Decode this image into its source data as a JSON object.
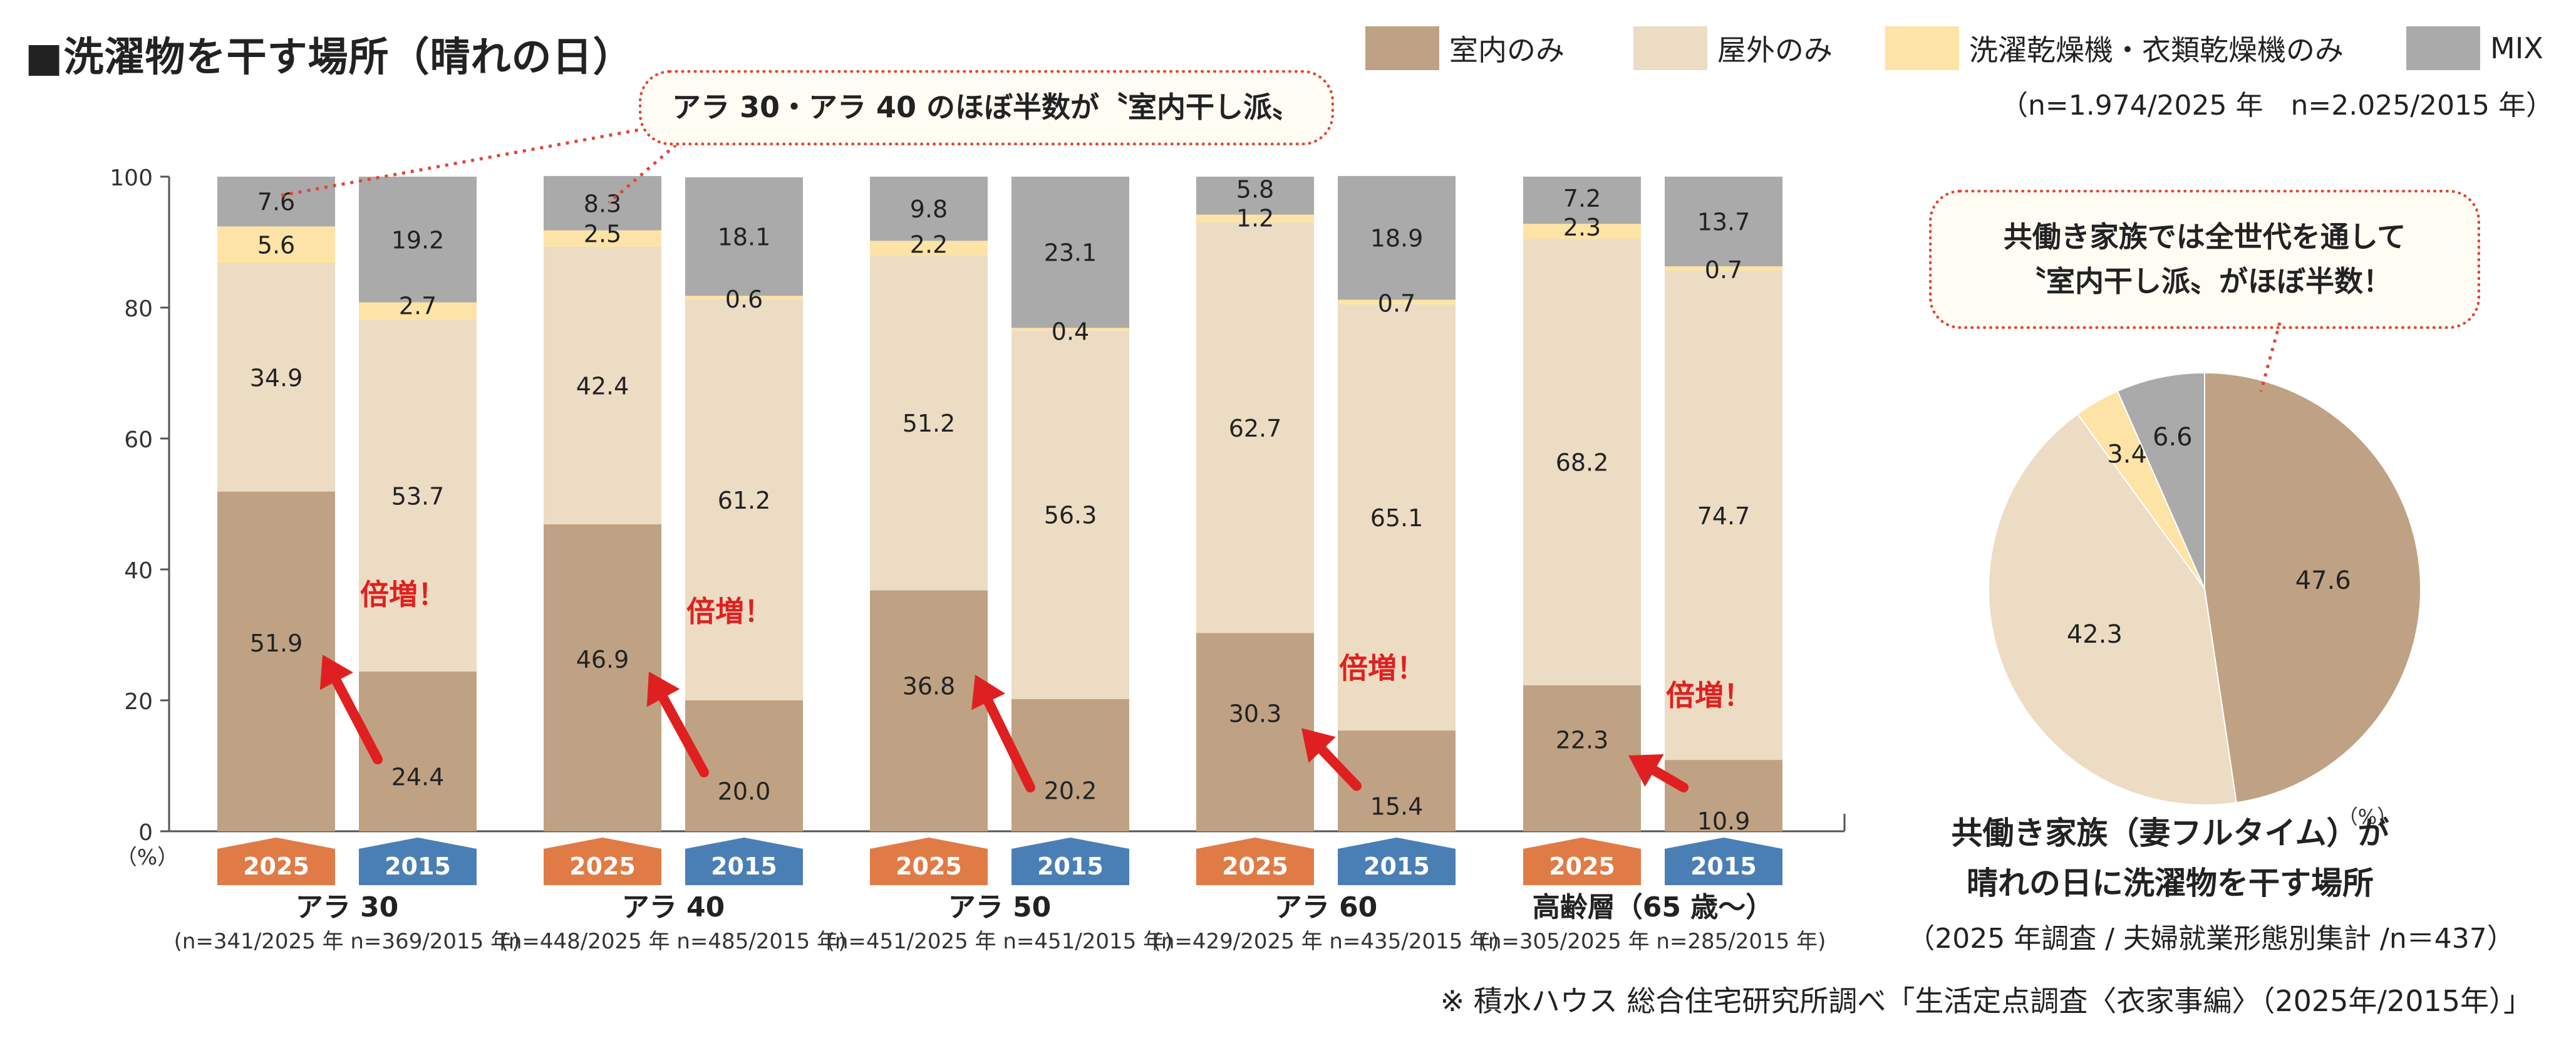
{
  "title": "■洗濯物を干す場所（晴れの日）",
  "legend": [
    {
      "label": "室内のみ",
      "color": "#bfa283"
    },
    {
      "label": "屋外のみ",
      "color": "#ecdcc3"
    },
    {
      "label": "洗濯乾燥機・衣類乾燥機のみ",
      "color": "#fde3a5"
    },
    {
      "label": "MIX",
      "color": "#aaaaaa"
    }
  ],
  "sample_note": "（n=1.974/2025 年　n=2.025/2015 年）",
  "callout_main": "アラ 30・アラ 40 のほぼ半数が〝室内干し派〟",
  "callout_pie": {
    "line1": "共働き家族では全世代を通して",
    "line2": "〝室内干し派〟がほぼ半数！"
  },
  "pie_title": {
    "line1": "共働き家族（妻フルタイム）が",
    "line2": "晴れの日に洗濯物を干す場所"
  },
  "pie_note": "（2025 年調査 / 夫婦就業形態別集計 /n＝437）",
  "source_note": "※ 積水ハウス 総合住宅研究所調べ「生活定点調査〈衣家事編〉（2025年/2015年）」",
  "chart_data": [
    {
      "type": "bar",
      "stacked": true,
      "ylim": [
        0,
        100
      ],
      "yticks": [
        "0",
        "20",
        "40",
        "60",
        "80",
        "100"
      ],
      "yunit": "（%）",
      "badge_colors": {
        "2025": "#e07b45",
        "2015": "#4a7fb5"
      },
      "series_names": [
        "室内のみ",
        "屋外のみ",
        "洗濯乾燥機・衣類乾燥機のみ",
        "MIX"
      ],
      "series_colors": [
        "#bfa283",
        "#ecdcc3",
        "#fde3a5",
        "#aaaaaa"
      ],
      "increase_label": "倍増！",
      "increase_color": "#e02020",
      "groups": [
        {
          "name": "アラ 30",
          "sample": "(n=341/2025 年 n=369/2015 年)",
          "increase": true,
          "bars": [
            {
              "year": "2025",
              "values": [
                51.9,
                34.9,
                5.6,
                7.6
              ]
            },
            {
              "year": "2015",
              "values": [
                24.4,
                53.7,
                2.7,
                19.2
              ]
            }
          ]
        },
        {
          "name": "アラ 40",
          "sample": "(n=448/2025 年 n=485/2015 年)",
          "increase": true,
          "bars": [
            {
              "year": "2025",
              "values": [
                46.9,
                42.4,
                2.5,
                8.3
              ]
            },
            {
              "year": "2015",
              "values": [
                20.0,
                61.2,
                0.6,
                18.1
              ]
            }
          ]
        },
        {
          "name": "アラ 50",
          "sample": "(n=451/2025 年 n=451/2015 年)",
          "increase": false,
          "bars": [
            {
              "year": "2025",
              "values": [
                36.8,
                51.2,
                2.2,
                9.8
              ]
            },
            {
              "year": "2015",
              "values": [
                20.2,
                56.3,
                0.4,
                23.1
              ]
            }
          ]
        },
        {
          "name": "アラ 60",
          "sample": "(n=429/2025 年 n=435/2015 年)",
          "increase": true,
          "bars": [
            {
              "year": "2025",
              "values": [
                30.3,
                62.7,
                1.2,
                5.8
              ]
            },
            {
              "year": "2015",
              "values": [
                15.4,
                65.1,
                0.7,
                18.9
              ]
            }
          ]
        },
        {
          "name": "高齢層（65 歳～）",
          "sample": "(n=305/2025 年 n=285/2015 年)",
          "increase": true,
          "bars": [
            {
              "year": "2025",
              "values": [
                22.3,
                68.2,
                2.3,
                7.2
              ]
            },
            {
              "year": "2015",
              "values": [
                10.9,
                74.7,
                0.7,
                13.7
              ]
            }
          ]
        }
      ]
    },
    {
      "type": "pie",
      "unit": "（%）",
      "slices": [
        {
          "label": "室内のみ",
          "value": 47.6,
          "color": "#bfa283"
        },
        {
          "label": "屋外のみ",
          "value": 42.3,
          "color": "#ecdcc3"
        },
        {
          "label": "洗濯乾燥機・衣類乾燥機のみ",
          "value": 3.4,
          "color": "#fde3a5"
        },
        {
          "label": "MIX",
          "value": 6.6,
          "color": "#aaaaaa"
        }
      ]
    }
  ]
}
